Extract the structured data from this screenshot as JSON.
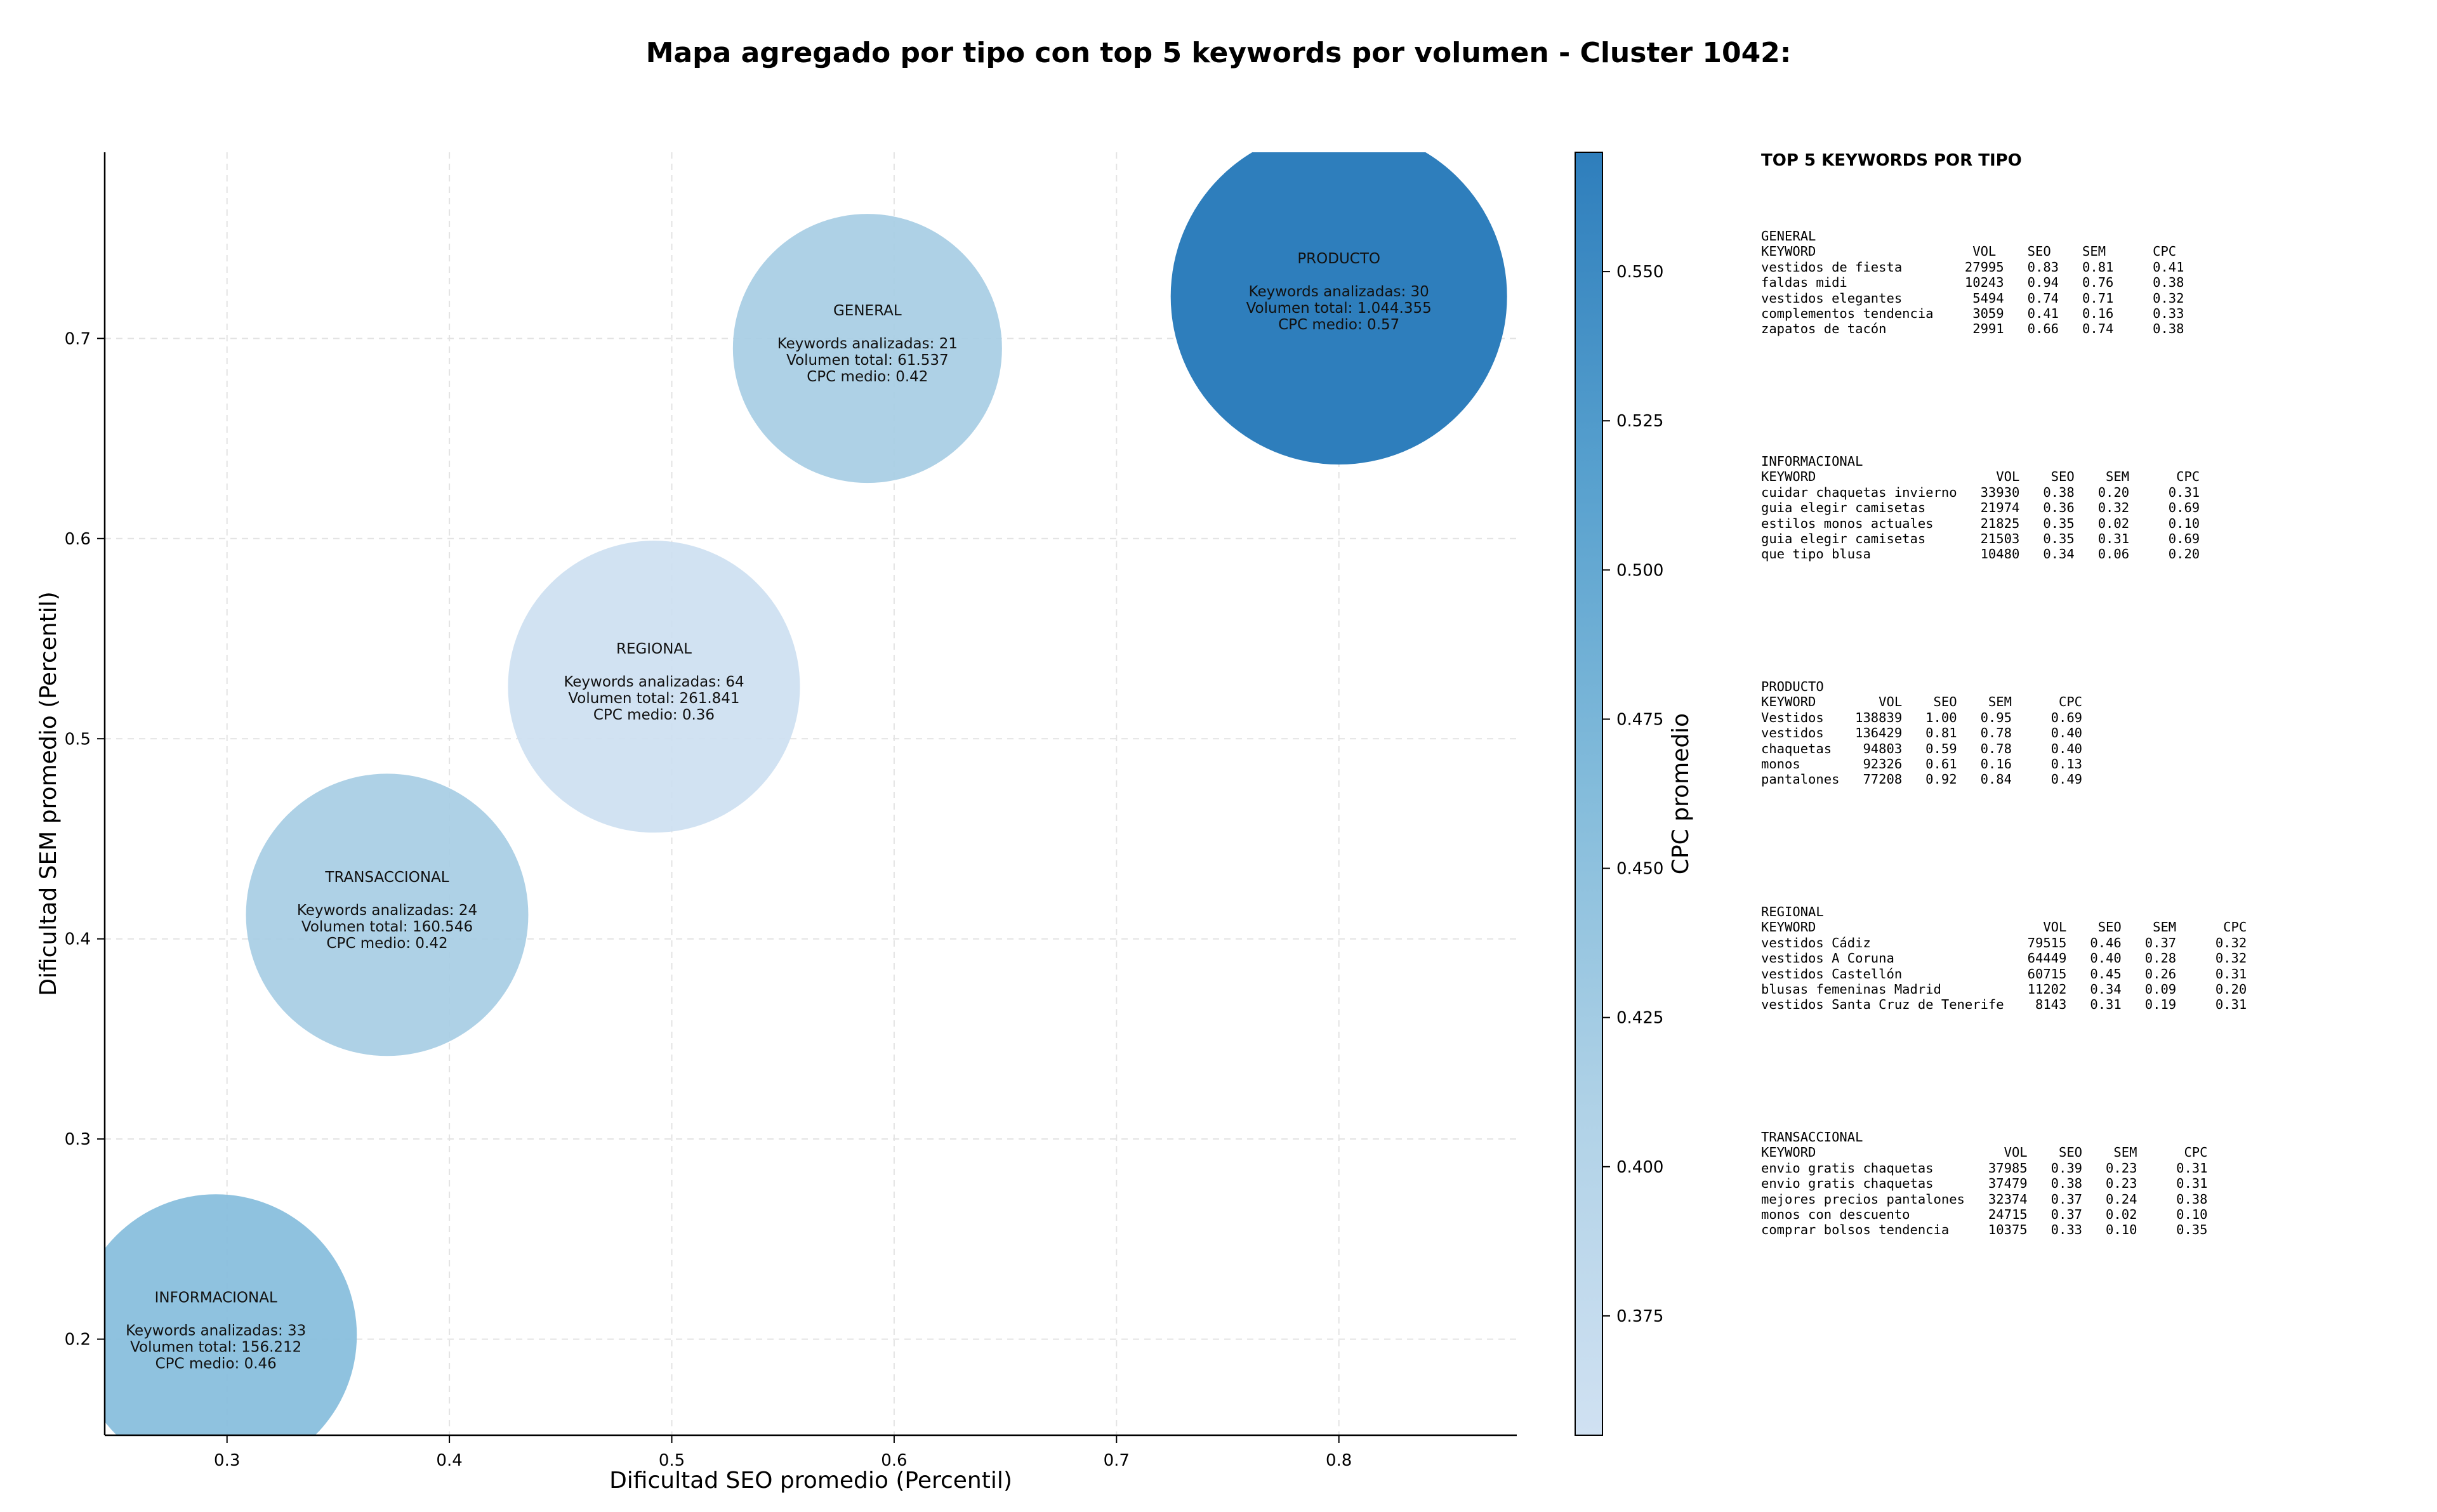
{
  "chart_data": {
    "type": "scatter",
    "title": "Mapa agregado por tipo con top 5 keywords por volumen - Cluster 1042:",
    "xlabel": "Dificultad SEO promedio (Percentil)",
    "ylabel": "Dificultad SEM promedio (Percentil)",
    "xlim": [
      0.245,
      0.88
    ],
    "ylim": [
      0.152,
      0.793
    ],
    "xticks": [
      "0.3",
      "0.4",
      "0.5",
      "0.6",
      "0.7",
      "0.8"
    ],
    "yticks": [
      "0.2",
      "0.3",
      "0.4",
      "0.5",
      "0.6",
      "0.7"
    ],
    "grid": true,
    "colorbar": {
      "label": "CPC promedio",
      "range": [
        0.355,
        0.57
      ],
      "ticks": [
        "0.375",
        "0.400",
        "0.425",
        "0.450",
        "0.475",
        "0.500",
        "0.525",
        "0.550"
      ],
      "colormap": "Blues"
    },
    "bubbles": [
      {
        "name": "PRODUCTO",
        "x": 0.8,
        "y": 0.721,
        "cpc": 0.57,
        "size": 1044355,
        "line1": "Keywords analizadas: 30",
        "line2": "Volumen total: 1.044.355",
        "line3": "CPC medio: 0.57"
      },
      {
        "name": "GENERAL",
        "x": 0.588,
        "y": 0.695,
        "cpc": 0.42,
        "size": 61537,
        "line1": "Keywords analizadas: 21",
        "line2": "Volumen total: 61.537",
        "line3": "CPC medio: 0.42"
      },
      {
        "name": "REGIONAL",
        "x": 0.492,
        "y": 0.526,
        "cpc": 0.36,
        "size": 261841,
        "line1": "Keywords analizadas: 64",
        "line2": "Volumen total: 261.841",
        "line3": "CPC medio: 0.36"
      },
      {
        "name": "TRANSACCIONAL",
        "x": 0.372,
        "y": 0.412,
        "cpc": 0.42,
        "size": 160546,
        "line1": "Keywords analizadas: 24",
        "line2": "Volumen total: 160.546",
        "line3": "CPC medio: 0.42"
      },
      {
        "name": "INFORMACIONAL",
        "x": 0.295,
        "y": 0.202,
        "cpc": 0.46,
        "size": 156212,
        "line1": "Keywords analizadas: 33",
        "line2": "Volumen total: 156.212",
        "line3": "CPC medio: 0.46"
      }
    ]
  },
  "side_panel": {
    "title": "TOP 5 KEYWORDS POR TIPO",
    "blocks": [
      {
        "name": "GENERAL",
        "lines": [
          "KEYWORD                    VOL    SEO    SEM      CPC",
          "vestidos de fiesta        27995   0.83   0.81     0.41",
          "faldas midi               10243   0.94   0.76     0.38",
          "vestidos elegantes         5494   0.74   0.71     0.32",
          "complementos tendencia     3059   0.41   0.16     0.33",
          "zapatos de tacón           2991   0.66   0.74     0.38"
        ]
      },
      {
        "name": "INFORMACIONAL",
        "lines": [
          "KEYWORD                       VOL    SEO    SEM      CPC",
          "cuidar chaquetas invierno   33930   0.38   0.20     0.31",
          "guia elegir camisetas       21974   0.36   0.32     0.69",
          "estilos monos actuales      21825   0.35   0.02     0.10",
          "guia elegir camisetas       21503   0.35   0.31     0.69",
          "que tipo blusa              10480   0.34   0.06     0.20"
        ]
      },
      {
        "name": "PRODUCTO",
        "lines": [
          "KEYWORD        VOL    SEO    SEM      CPC",
          "Vestidos    138839   1.00   0.95     0.69",
          "vestidos    136429   0.81   0.78     0.40",
          "chaquetas    94803   0.59   0.78     0.40",
          "monos        92326   0.61   0.16     0.13",
          "pantalones   77208   0.92   0.84     0.49"
        ]
      },
      {
        "name": "REGIONAL",
        "lines": [
          "KEYWORD                             VOL    SEO    SEM      CPC",
          "vestidos Cádiz                    79515   0.46   0.37     0.32",
          "vestidos A Coruna                 64449   0.40   0.28     0.32",
          "vestidos Castellón                60715   0.45   0.26     0.31",
          "blusas femeninas Madrid           11202   0.34   0.09     0.20",
          "vestidos Santa Cruz de Tenerife    8143   0.31   0.19     0.31"
        ]
      },
      {
        "name": "TRANSACCIONAL",
        "lines": [
          "KEYWORD                        VOL    SEO    SEM      CPC",
          "envio gratis chaquetas       37985   0.39   0.23     0.31",
          "envio gratis chaquetas       37479   0.38   0.23     0.31",
          "mejores precios pantalones   32374   0.37   0.24     0.38",
          "monos con descuento          24715   0.37   0.02     0.10",
          "comprar bolsos tendencia     10375   0.33   0.10     0.35"
        ]
      }
    ]
  }
}
